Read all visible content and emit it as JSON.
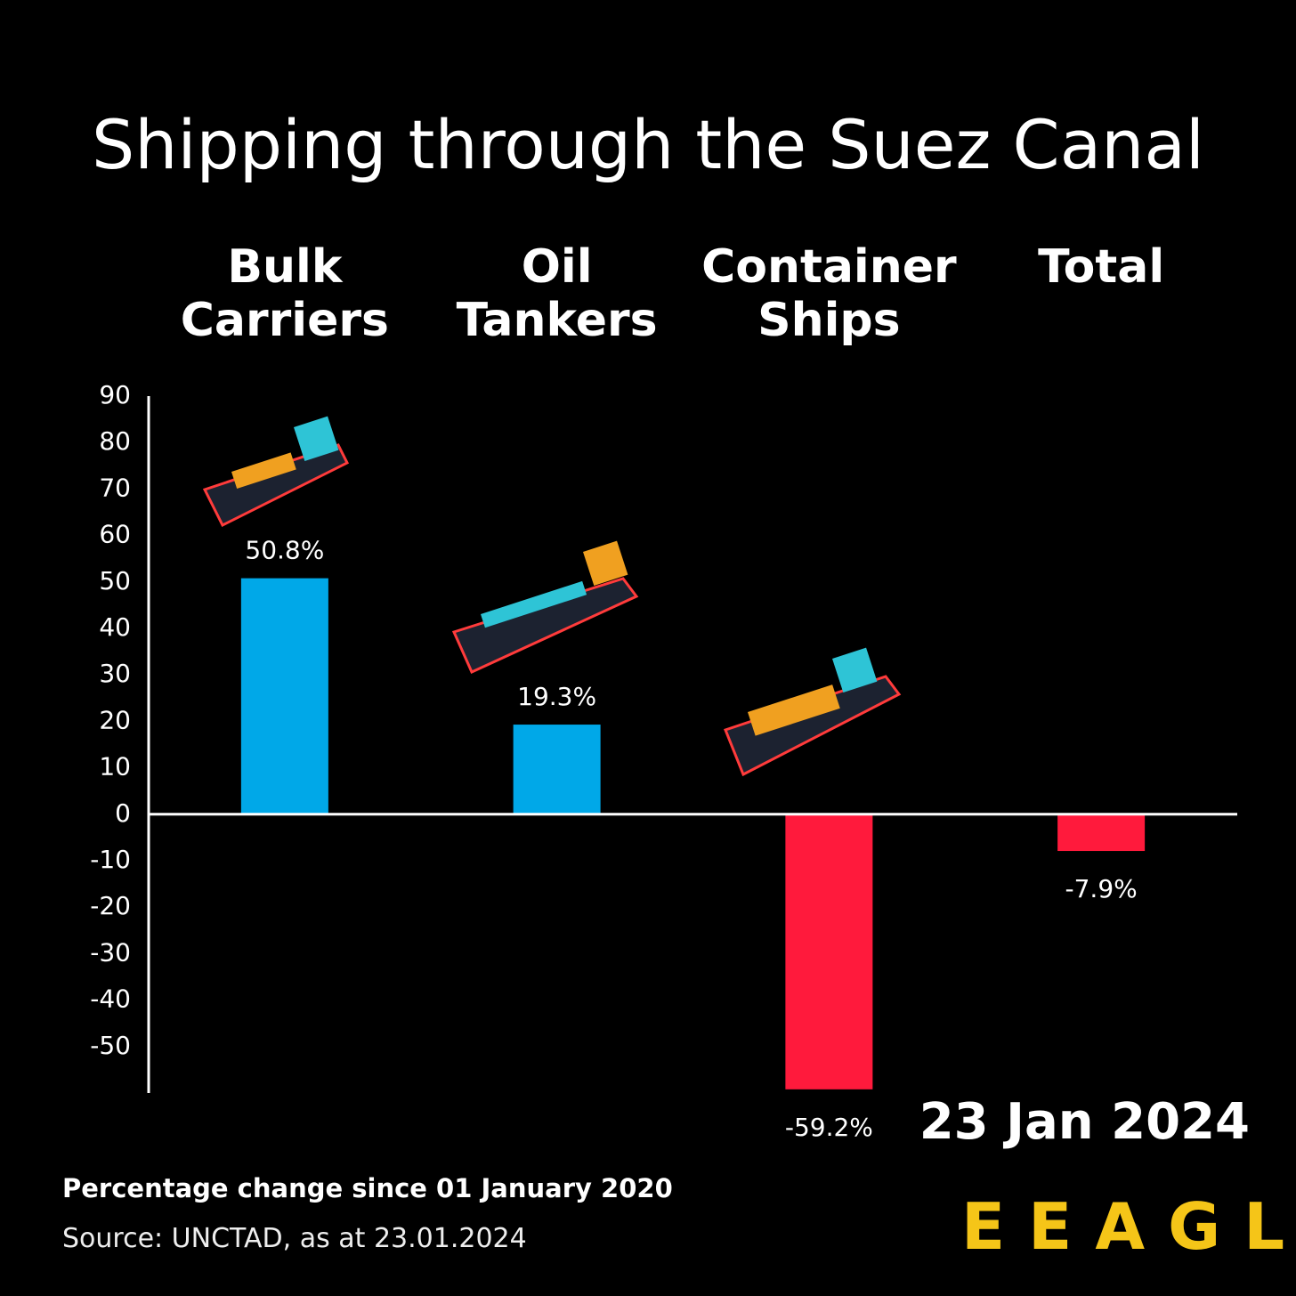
{
  "chart_data": {
    "type": "bar",
    "title": "Shipping through the Suez Canal",
    "categories": [
      "Bulk Carriers",
      "Oil Tankers",
      "Container Ships",
      "Total"
    ],
    "values": [
      50.8,
      19.3,
      -59.2,
      -7.9
    ],
    "value_labels": [
      "50.8%",
      "19.3%",
      "-59.2%",
      "-7.9%"
    ],
    "positive_color": "#00a8e8",
    "negative_color": "#ff1a3c",
    "ylim": [
      -60,
      90
    ],
    "yticks": [
      -50,
      -40,
      -30,
      -20,
      -10,
      0,
      10,
      20,
      30,
      40,
      50,
      60,
      70,
      80,
      90
    ],
    "grid": false,
    "date": "23 Jan 2024",
    "subtitle": "Percentage change since 01 January 2020",
    "source": "Source: UNCTAD, as at 23.01.2024",
    "logo": "EEAGLI"
  }
}
